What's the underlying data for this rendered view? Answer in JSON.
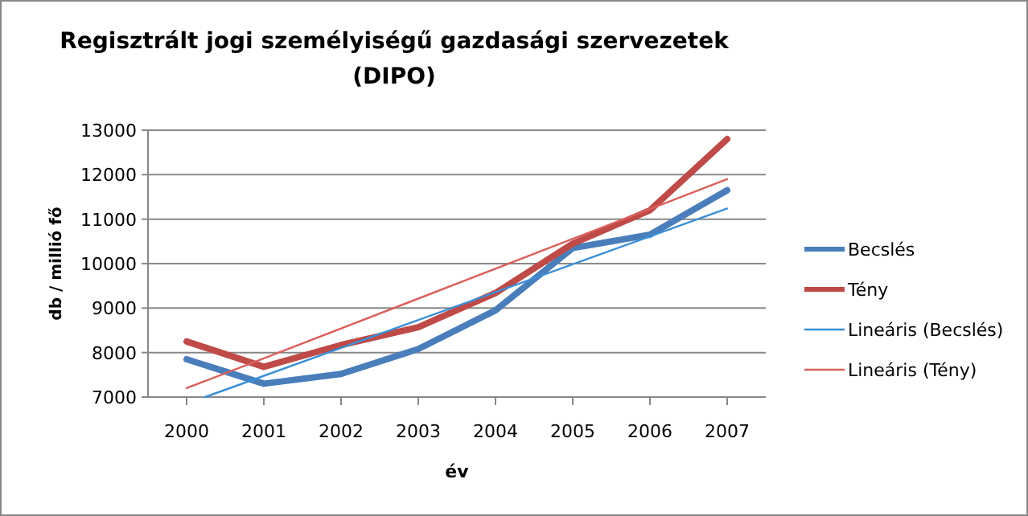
{
  "chart_data": {
    "type": "line",
    "title": "Regisztrált jogi személyiségű gazdasági szervezetek (DIPO)",
    "xlabel": "év",
    "ylabel": "db / millió fő",
    "x": [
      2000,
      2001,
      2002,
      2003,
      2004,
      2005,
      2006,
      2007
    ],
    "xlim": [
      1999.5,
      2007.5
    ],
    "xticks": [
      2000,
      2001,
      2002,
      2003,
      2004,
      2005,
      2006,
      2007
    ],
    "ylim": [
      7000,
      13000
    ],
    "yticks": [
      7000,
      8000,
      9000,
      10000,
      11000,
      12000,
      13000
    ],
    "grid": "y",
    "legend": "right",
    "marker": "none",
    "line_style": "solid",
    "series": [
      {
        "name": "Becslés",
        "color": "#4a7ebb",
        "values": [
          7850,
          7300,
          7520,
          8080,
          8950,
          10350,
          10650,
          11650
        ]
      },
      {
        "name": "Tény",
        "color": "#be4b48",
        "values": [
          8250,
          7680,
          8170,
          8570,
          9340,
          10450,
          11200,
          12800
        ]
      },
      {
        "name": "Lineáris (Becslés)",
        "color": "#3a8fd8",
        "x": [
          2000.24,
          2007
        ],
        "values": [
          7000,
          11240
        ]
      },
      {
        "name": "Lineáris (Tény)",
        "color": "#d9605c",
        "x": [
          2000,
          2007
        ],
        "values": [
          7200,
          11900
        ]
      }
    ]
  }
}
